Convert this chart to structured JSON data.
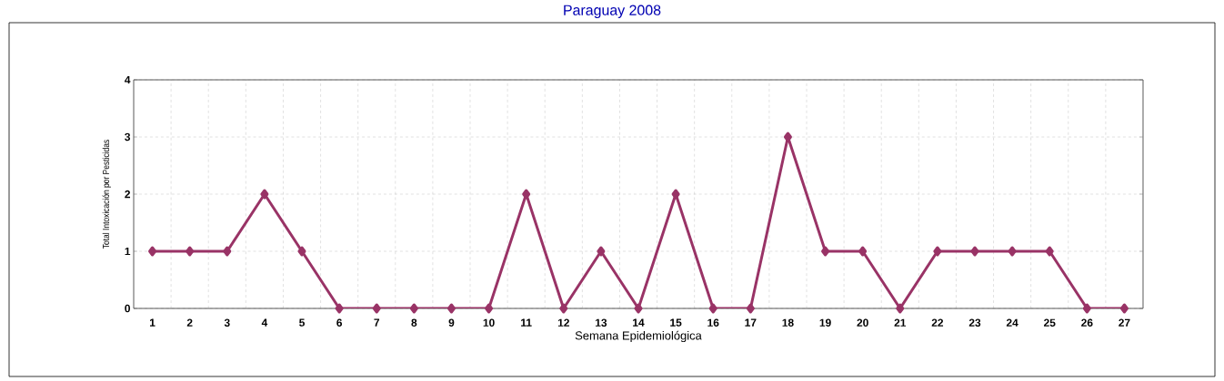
{
  "chart_data": {
    "type": "line",
    "title": "Paraguay 2008",
    "xlabel": "Semana Epidemiológica",
    "ylabel": "Total Intoxicación por Pesticidas",
    "categories": [
      "1",
      "2",
      "3",
      "4",
      "5",
      "6",
      "7",
      "8",
      "9",
      "10",
      "11",
      "12",
      "13",
      "14",
      "15",
      "16",
      "17",
      "18",
      "19",
      "20",
      "21",
      "22",
      "23",
      "24",
      "25",
      "26",
      "27"
    ],
    "values": [
      1,
      1,
      1,
      2,
      1,
      0,
      0,
      0,
      0,
      0,
      2,
      0,
      1,
      0,
      2,
      0,
      0,
      3,
      1,
      1,
      0,
      1,
      1,
      1,
      1,
      0,
      0
    ],
    "color": "#993366",
    "ylim": [
      0,
      4
    ],
    "yticks": [
      0,
      1,
      2,
      3,
      4
    ],
    "grid": true,
    "marker": "diamond",
    "line_style": "solid"
  }
}
